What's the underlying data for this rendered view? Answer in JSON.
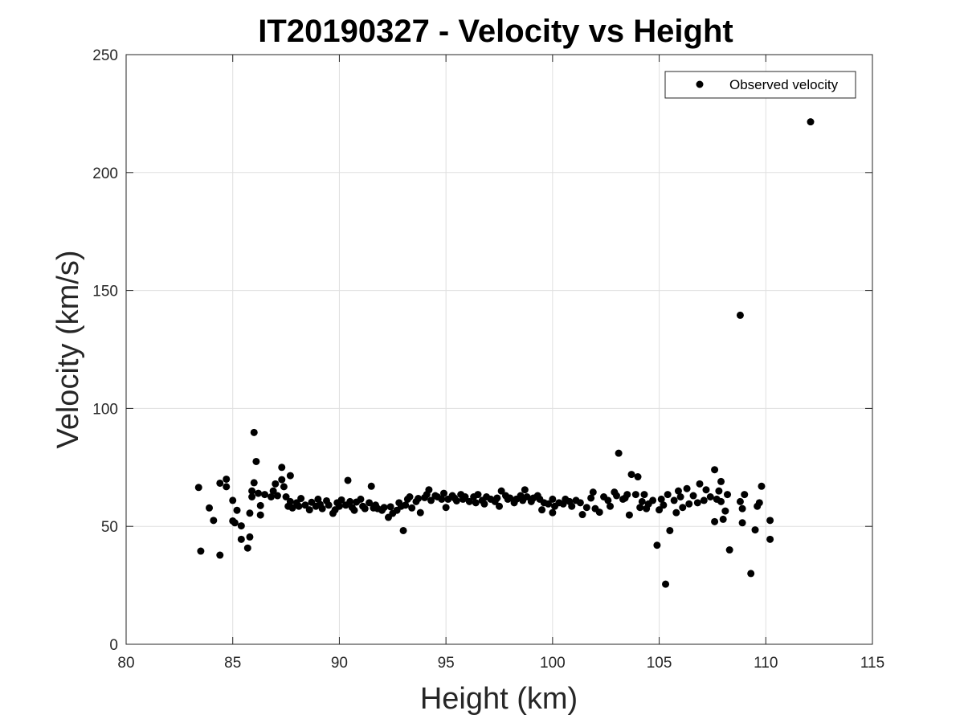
{
  "chart_data": {
    "type": "scatter",
    "title": "IT20190327 - Velocity vs Height",
    "xlabel": "Height (km)",
    "ylabel": "Velocity (km/s)",
    "xlim": [
      80,
      115
    ],
    "ylim": [
      0,
      250
    ],
    "xticks": [
      80,
      85,
      90,
      95,
      100,
      105,
      110,
      115
    ],
    "yticks": [
      0,
      50,
      100,
      150,
      200,
      250
    ],
    "xtick_labels": [
      "80",
      "85",
      "90",
      "95",
      "100",
      "105",
      "110",
      "115"
    ],
    "ytick_labels": [
      "0",
      "50",
      "100",
      "150",
      "200",
      "250"
    ],
    "grid": true,
    "legend_position": "top-right",
    "marker_color": "#000000",
    "series": [
      {
        "name": "Observed velocity",
        "points": [
          [
            83.4,
            66.5
          ],
          [
            83.5,
            39.5
          ],
          [
            83.9,
            57.8
          ],
          [
            84.1,
            52.5
          ],
          [
            84.4,
            68.3
          ],
          [
            84.4,
            37.8
          ],
          [
            84.7,
            66.8
          ],
          [
            84.7,
            70.0
          ],
          [
            85.0,
            52.3
          ],
          [
            85.0,
            61.0
          ],
          [
            85.1,
            51.5
          ],
          [
            85.2,
            56.8
          ],
          [
            85.4,
            50.2
          ],
          [
            85.4,
            44.5
          ],
          [
            85.7,
            40.8
          ],
          [
            85.8,
            55.6
          ],
          [
            85.8,
            45.5
          ],
          [
            85.9,
            62.5
          ],
          [
            85.9,
            65.0
          ],
          [
            86.0,
            89.8
          ],
          [
            86.0,
            68.5
          ],
          [
            86.1,
            77.5
          ],
          [
            86.2,
            64.0
          ],
          [
            86.3,
            58.8
          ],
          [
            86.3,
            54.8
          ],
          [
            86.5,
            63.5
          ],
          [
            86.8,
            62.5
          ],
          [
            86.9,
            65.0
          ],
          [
            87.0,
            68.0
          ],
          [
            87.1,
            63.0
          ],
          [
            87.3,
            69.8
          ],
          [
            87.3,
            75.0
          ],
          [
            87.4,
            66.8
          ],
          [
            87.5,
            62.5
          ],
          [
            87.6,
            58.5
          ],
          [
            87.7,
            71.5
          ],
          [
            87.7,
            60.5
          ],
          [
            87.8,
            57.8
          ],
          [
            88.0,
            60.0
          ],
          [
            88.1,
            58.5
          ],
          [
            88.2,
            61.8
          ],
          [
            88.4,
            59.0
          ],
          [
            88.6,
            57.0
          ],
          [
            88.7,
            60.2
          ],
          [
            88.9,
            58.5
          ],
          [
            89.0,
            61.5
          ],
          [
            89.1,
            59.3
          ],
          [
            89.2,
            57.5
          ],
          [
            89.4,
            60.8
          ],
          [
            89.5,
            59.0
          ],
          [
            89.7,
            55.5
          ],
          [
            89.8,
            57.0
          ],
          [
            89.9,
            60.0
          ],
          [
            90.0,
            58.5
          ],
          [
            90.1,
            61.2
          ],
          [
            90.3,
            59.0
          ],
          [
            90.4,
            69.5
          ],
          [
            90.5,
            60.5
          ],
          [
            90.6,
            58.0
          ],
          [
            90.7,
            56.8
          ],
          [
            90.8,
            60.3
          ],
          [
            91.0,
            61.5
          ],
          [
            91.1,
            58.5
          ],
          [
            91.2,
            57.5
          ],
          [
            91.4,
            60.0
          ],
          [
            91.5,
            67.0
          ],
          [
            91.6,
            57.8
          ],
          [
            91.7,
            59.0
          ],
          [
            91.8,
            57.5
          ],
          [
            92.0,
            56.8
          ],
          [
            92.1,
            58.0
          ],
          [
            92.3,
            53.8
          ],
          [
            92.4,
            58.3
          ],
          [
            92.5,
            55.5
          ],
          [
            92.7,
            56.8
          ],
          [
            92.8,
            60.0
          ],
          [
            92.9,
            58.5
          ],
          [
            93.0,
            48.2
          ],
          [
            93.1,
            59.0
          ],
          [
            93.2,
            61.5
          ],
          [
            93.3,
            62.5
          ],
          [
            93.4,
            57.8
          ],
          [
            93.6,
            60.5
          ],
          [
            93.7,
            61.8
          ],
          [
            93.8,
            55.8
          ],
          [
            94.0,
            62.2
          ],
          [
            94.1,
            63.5
          ],
          [
            94.2,
            65.5
          ],
          [
            94.3,
            61.0
          ],
          [
            94.5,
            63.0
          ],
          [
            94.6,
            62.5
          ],
          [
            94.8,
            61.5
          ],
          [
            94.9,
            64.0
          ],
          [
            95.0,
            58.0
          ],
          [
            95.1,
            61.5
          ],
          [
            95.3,
            63.0
          ],
          [
            95.4,
            62.0
          ],
          [
            95.5,
            60.8
          ],
          [
            95.7,
            63.5
          ],
          [
            95.8,
            61.5
          ],
          [
            95.9,
            62.5
          ],
          [
            96.1,
            60.5
          ],
          [
            96.3,
            62.5
          ],
          [
            96.4,
            60.0
          ],
          [
            96.5,
            63.5
          ],
          [
            96.7,
            61.0
          ],
          [
            96.8,
            59.5
          ],
          [
            96.9,
            62.5
          ],
          [
            97.1,
            61.5
          ],
          [
            97.3,
            60.5
          ],
          [
            97.4,
            62.0
          ],
          [
            97.5,
            58.5
          ],
          [
            97.6,
            65.0
          ],
          [
            97.8,
            63.0
          ],
          [
            97.9,
            61.5
          ],
          [
            98.0,
            62.0
          ],
          [
            98.2,
            60.0
          ],
          [
            98.3,
            61.5
          ],
          [
            98.5,
            63.0
          ],
          [
            98.6,
            61.0
          ],
          [
            98.7,
            65.5
          ],
          [
            98.8,
            62.5
          ],
          [
            99.0,
            60.5
          ],
          [
            99.1,
            62.0
          ],
          [
            99.3,
            63.0
          ],
          [
            99.4,
            61.5
          ],
          [
            99.5,
            57.0
          ],
          [
            99.6,
            60.0
          ],
          [
            99.8,
            59.5
          ],
          [
            100.0,
            61.5
          ],
          [
            100.1,
            58.5
          ],
          [
            100.0,
            55.8
          ],
          [
            100.3,
            60.0
          ],
          [
            100.5,
            59.5
          ],
          [
            100.6,
            61.5
          ],
          [
            100.8,
            60.5
          ],
          [
            100.9,
            58.5
          ],
          [
            101.1,
            61.0
          ],
          [
            101.3,
            60.0
          ],
          [
            101.4,
            55.0
          ],
          [
            101.6,
            58.0
          ],
          [
            101.8,
            62.0
          ],
          [
            101.9,
            64.5
          ],
          [
            102.0,
            57.5
          ],
          [
            102.2,
            56.0
          ],
          [
            102.4,
            62.5
          ],
          [
            102.6,
            61.0
          ],
          [
            102.7,
            58.5
          ],
          [
            102.9,
            64.5
          ],
          [
            103.0,
            63.0
          ],
          [
            103.1,
            81.0
          ],
          [
            103.3,
            61.5
          ],
          [
            103.4,
            62.0
          ],
          [
            103.5,
            63.5
          ],
          [
            103.6,
            54.8
          ],
          [
            103.7,
            72.0
          ],
          [
            103.9,
            63.5
          ],
          [
            104.0,
            71.0
          ],
          [
            104.1,
            58.0
          ],
          [
            104.2,
            60.5
          ],
          [
            104.3,
            63.5
          ],
          [
            104.4,
            57.5
          ],
          [
            104.5,
            59.5
          ],
          [
            104.7,
            61.0
          ],
          [
            104.9,
            42.0
          ],
          [
            105.0,
            57.0
          ],
          [
            105.1,
            61.5
          ],
          [
            105.2,
            59.0
          ],
          [
            105.3,
            25.5
          ],
          [
            105.4,
            63.5
          ],
          [
            105.5,
            48.2
          ],
          [
            105.7,
            61.0
          ],
          [
            105.8,
            55.8
          ],
          [
            105.9,
            65.0
          ],
          [
            106.0,
            62.5
          ],
          [
            106.1,
            58.0
          ],
          [
            106.3,
            66.0
          ],
          [
            106.4,
            59.5
          ],
          [
            106.6,
            63.0
          ],
          [
            106.8,
            60.0
          ],
          [
            106.9,
            68.0
          ],
          [
            107.1,
            61.0
          ],
          [
            107.2,
            65.5
          ],
          [
            107.4,
            62.5
          ],
          [
            107.6,
            74.0
          ],
          [
            107.7,
            61.5
          ],
          [
            107.6,
            52.0
          ],
          [
            107.8,
            65.0
          ],
          [
            107.9,
            60.5
          ],
          [
            107.9,
            69.0
          ],
          [
            108.0,
            53.0
          ],
          [
            108.1,
            56.5
          ],
          [
            108.2,
            63.5
          ],
          [
            108.3,
            40.0
          ],
          [
            108.8,
            139.5
          ],
          [
            108.8,
            60.5
          ],
          [
            108.9,
            57.5
          ],
          [
            109.0,
            63.5
          ],
          [
            108.9,
            51.5
          ],
          [
            109.3,
            30.0
          ],
          [
            109.5,
            48.5
          ],
          [
            109.6,
            58.5
          ],
          [
            109.7,
            60.0
          ],
          [
            109.8,
            67.0
          ],
          [
            110.2,
            44.5
          ],
          [
            110.2,
            52.5
          ],
          [
            112.1,
            221.5
          ]
        ]
      }
    ]
  }
}
